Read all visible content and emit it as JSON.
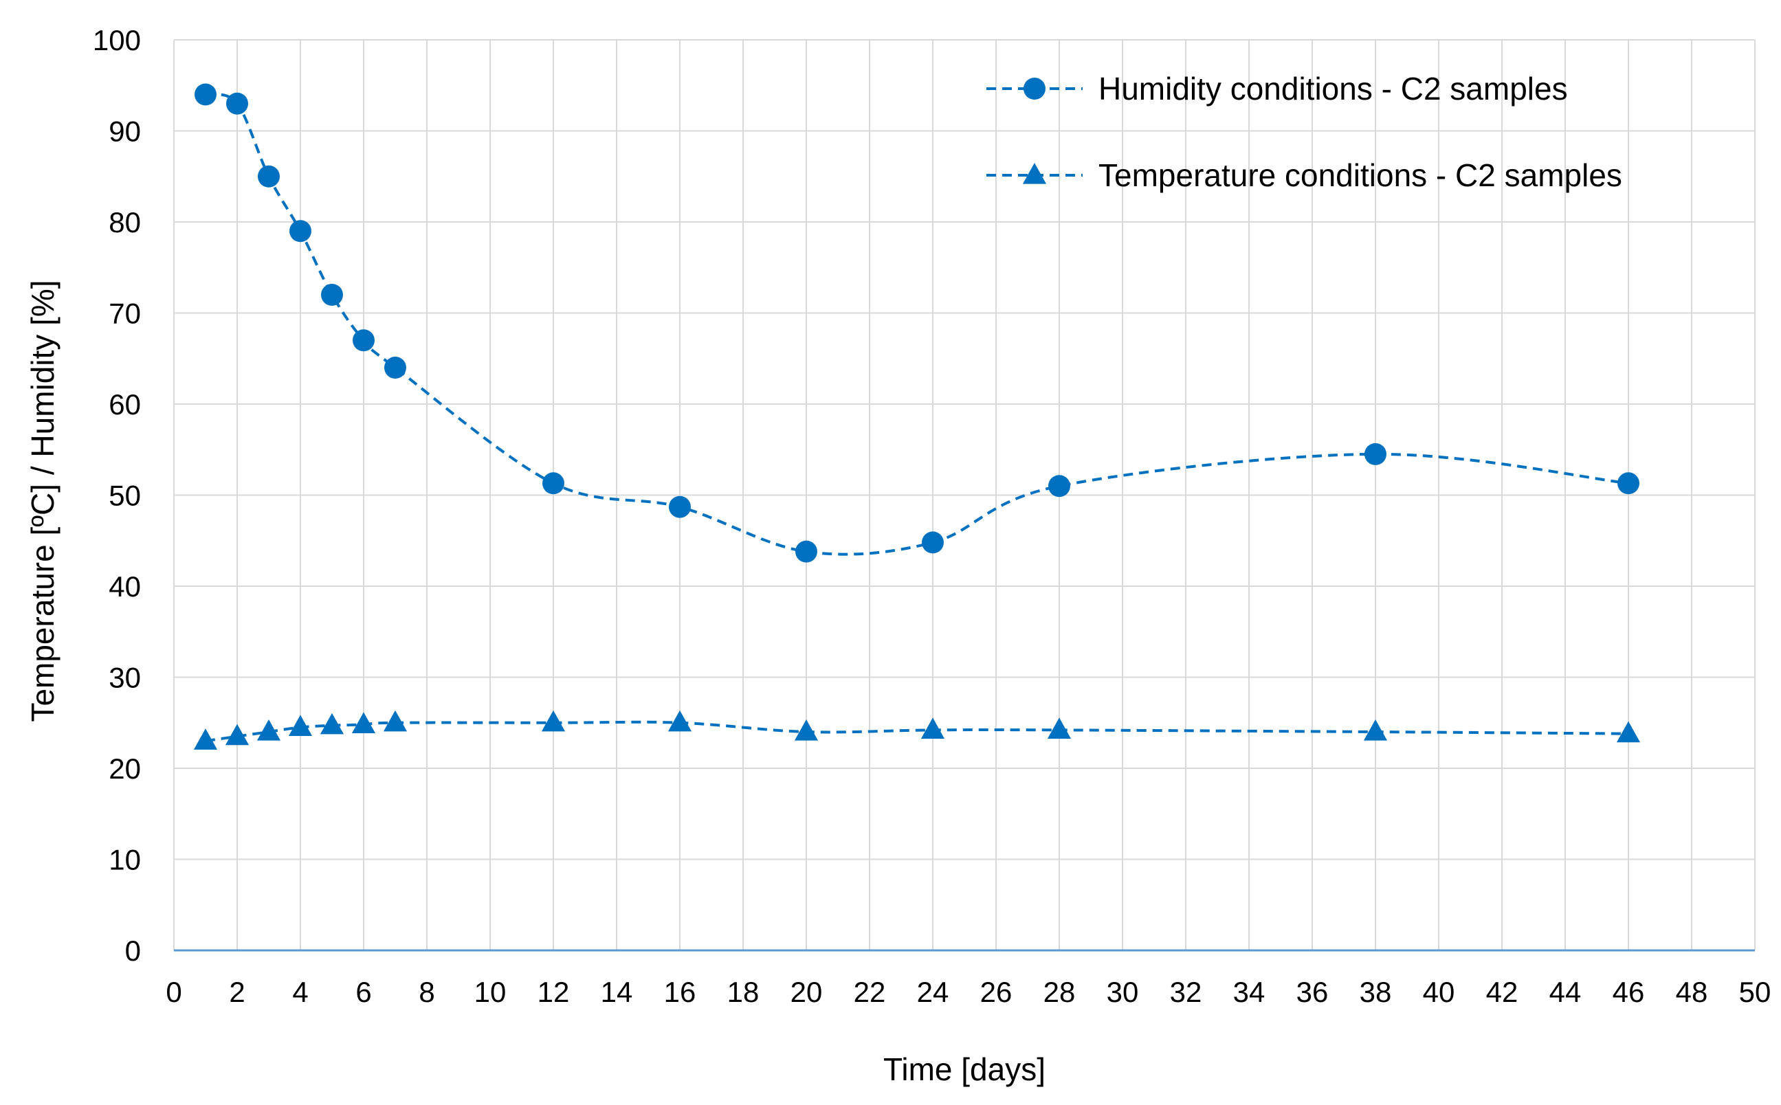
{
  "chart_data": {
    "type": "line",
    "title": "",
    "xlabel": "Time [days]",
    "ylabel": "Temperature [ºC] / Humidity [%]",
    "xlim": [
      0,
      50
    ],
    "ylim": [
      0,
      100
    ],
    "x_ticks": [
      "0",
      "2",
      "4",
      "6",
      "8",
      "10",
      "12",
      "14",
      "16",
      "18",
      "20",
      "22",
      "24",
      "26",
      "28",
      "30",
      "32",
      "34",
      "36",
      "38",
      "40",
      "42",
      "44",
      "46",
      "48",
      "50"
    ],
    "y_ticks": [
      "0",
      "10",
      "20",
      "30",
      "40",
      "50",
      "60",
      "70",
      "80",
      "90",
      "100"
    ],
    "grid": true,
    "legend_position": "top-right",
    "series_color": "#0070C0",
    "series": [
      {
        "name": "Humidity conditions - C2 samples",
        "marker": "circle",
        "line_style": "dashed",
        "x": [
          1,
          2,
          3,
          4,
          5,
          6,
          7,
          12,
          16,
          20,
          24,
          28,
          38,
          46
        ],
        "values": [
          94,
          93,
          85,
          79,
          72,
          67,
          64,
          51.3,
          48.7,
          43.8,
          44.8,
          51,
          54.5,
          51.3
        ]
      },
      {
        "name": "Temperature conditions - C2 samples",
        "marker": "triangle",
        "line_style": "dashed",
        "x": [
          1,
          2,
          3,
          4,
          5,
          6,
          7,
          12,
          16,
          20,
          24,
          28,
          38,
          46
        ],
        "values": [
          23,
          23.5,
          24,
          24.5,
          24.7,
          24.8,
          25,
          25,
          25,
          24,
          24.2,
          24.2,
          24,
          23.8
        ]
      }
    ]
  }
}
